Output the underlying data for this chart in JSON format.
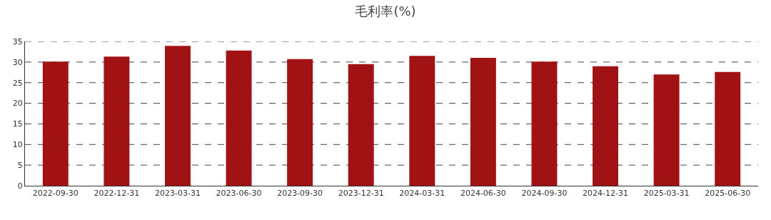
{
  "chart_data": {
    "type": "bar",
    "title": "毛利率(%)",
    "categories": [
      "2022-09-30",
      "2022-12-31",
      "2023-03-31",
      "2023-06-30",
      "2023-09-30",
      "2023-12-31",
      "2024-03-31",
      "2024-06-30",
      "2024-09-30",
      "2024-12-31",
      "2025-03-31",
      "2025-06-30"
    ],
    "values": [
      30.1,
      31.3,
      33.9,
      32.8,
      30.7,
      29.5,
      31.5,
      31.0,
      30.1,
      29.0,
      27.0,
      27.6
    ],
    "color": "#a01214",
    "ylim": [
      0,
      35
    ],
    "yticks": [
      0,
      5,
      10,
      15,
      20,
      25,
      30,
      35
    ],
    "grid": "y"
  }
}
